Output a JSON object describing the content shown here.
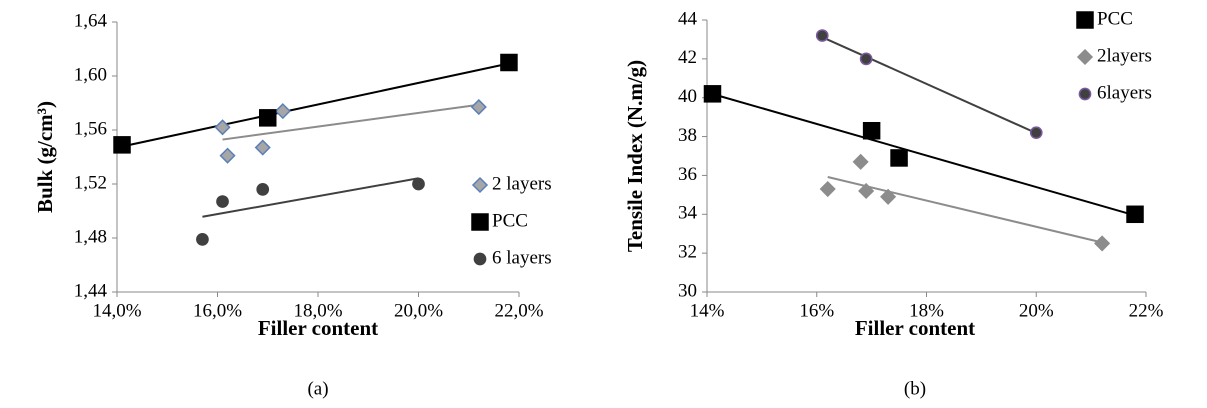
{
  "chart_data": [
    {
      "type": "scatter",
      "x_label": "Filler content",
      "y_label": "Bulk (g/cm³)",
      "caption": "(a)",
      "xlim": [
        14,
        22
      ],
      "ylim": [
        1.44,
        1.64
      ],
      "xticks": [
        {
          "value": 14,
          "label": "14,0%"
        },
        {
          "value": 16,
          "label": "16,0%"
        },
        {
          "value": 18,
          "label": "18,0%"
        },
        {
          "value": 20,
          "label": "20,0%"
        },
        {
          "value": 22,
          "label": "22,0%"
        }
      ],
      "yticks": [
        {
          "value": 1.44,
          "label": "1,44"
        },
        {
          "value": 1.48,
          "label": "1,48"
        },
        {
          "value": 1.52,
          "label": "1,52"
        },
        {
          "value": 1.56,
          "label": "1,56"
        },
        {
          "value": 1.6,
          "label": "1,60"
        },
        {
          "value": 1.64,
          "label": "1,64"
        }
      ],
      "legend": "lower right",
      "trendline": true,
      "series": [
        {
          "name": "2 layers",
          "color": "#a6a6a6",
          "edge": "#5b7fb8",
          "marker": "diamond",
          "trend_color": "#8c8c8c",
          "x": [
            16.1,
            16.2,
            16.9,
            17.3,
            21.2
          ],
          "values": [
            1.562,
            1.541,
            1.547,
            1.574,
            1.577
          ]
        },
        {
          "name": "PCC",
          "color": "#000000",
          "edge": "#000000",
          "marker": "square",
          "trend_color": "#000000",
          "x": [
            14.1,
            17.0,
            21.8
          ],
          "values": [
            1.549,
            1.569,
            1.61
          ]
        },
        {
          "name": "6 layers",
          "color": "#404040",
          "edge": "#404040",
          "marker": "circle",
          "trend_color": "#404040",
          "x": [
            15.7,
            16.1,
            16.9,
            20.0
          ],
          "values": [
            1.479,
            1.507,
            1.516,
            1.52
          ]
        }
      ]
    },
    {
      "type": "scatter",
      "x_label": "Filler content",
      "y_label": "Tensile Index (N.m/g)",
      "caption": "(b)",
      "xlim": [
        14,
        22
      ],
      "ylim": [
        30,
        44
      ],
      "xticks": [
        {
          "value": 14,
          "label": "14%"
        },
        {
          "value": 16,
          "label": "16%"
        },
        {
          "value": 18,
          "label": "18%"
        },
        {
          "value": 20,
          "label": "20%"
        },
        {
          "value": 22,
          "label": "22%"
        }
      ],
      "yticks": [
        30,
        32,
        34,
        36,
        38,
        40,
        42,
        44
      ],
      "legend": "upper right",
      "trendline": true,
      "series": [
        {
          "name": "PCC",
          "color": "#000000",
          "edge": "#000000",
          "marker": "square",
          "trend_color": "#000000",
          "x": [
            14.1,
            17.0,
            17.5,
            21.8
          ],
          "values": [
            40.2,
            38.3,
            36.9,
            34.0
          ]
        },
        {
          "name": "2layers",
          "color": "#8c8c8c",
          "edge": "#8c8c8c",
          "marker": "diamond",
          "trend_color": "#8c8c8c",
          "x": [
            16.2,
            16.8,
            16.9,
            17.3,
            21.2
          ],
          "values": [
            35.3,
            36.7,
            35.2,
            34.9,
            32.5
          ]
        },
        {
          "name": "6layers",
          "color": "#404040",
          "edge": "#7a5a9e",
          "marker": "circle",
          "trend_color": "#404040",
          "x": [
            16.1,
            16.9,
            20.0
          ],
          "values": [
            43.2,
            42.0,
            38.2
          ]
        }
      ]
    }
  ]
}
